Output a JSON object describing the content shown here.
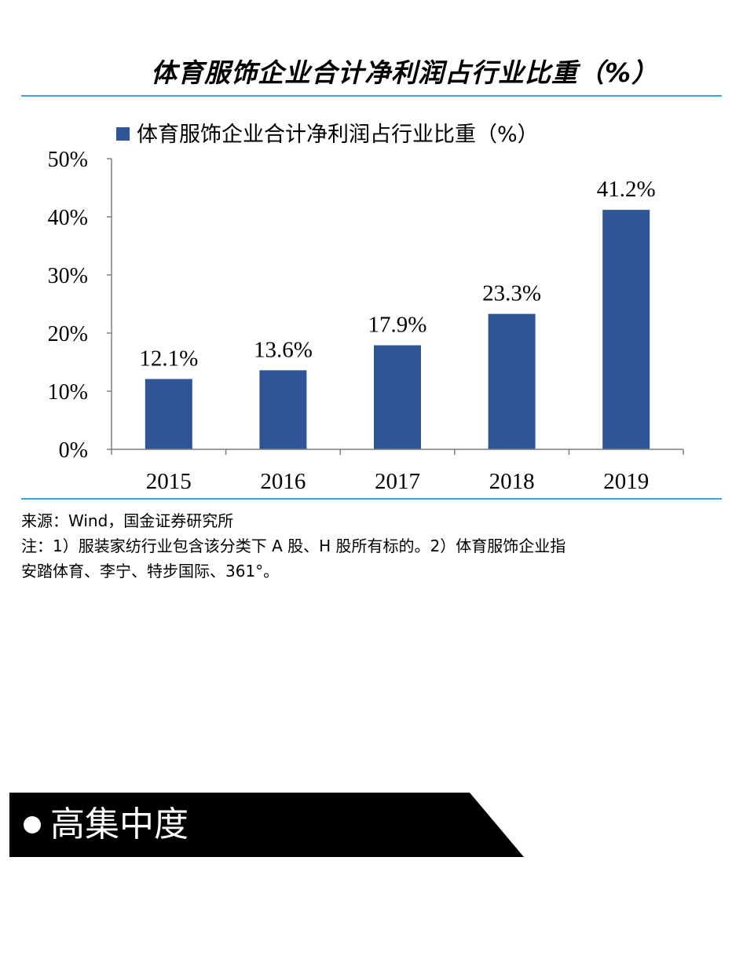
{
  "chart_data": {
    "type": "bar",
    "title": "体育服饰企业合计净利润占行业比重（%）",
    "legend": {
      "entries": [
        "体育服饰企业合计净利润占行业比重（%）"
      ],
      "placement": "top"
    },
    "categories": [
      "2015",
      "2016",
      "2017",
      "2018",
      "2019"
    ],
    "series": [
      {
        "name": "体育服饰企业合计净利润占行业比重（%）",
        "values": [
          12.1,
          13.6,
          17.9,
          23.3,
          41.2
        ],
        "labels": [
          "12.1%",
          "13.6%",
          "17.9%",
          "23.3%",
          "41.2%"
        ],
        "color": "#2f5597"
      }
    ],
    "ylim": [
      0,
      50
    ],
    "yticks": [
      0,
      10,
      20,
      30,
      40,
      50
    ],
    "ytick_labels": [
      "0%",
      "10%",
      "20%",
      "30%",
      "40%",
      "50%"
    ],
    "grid": false
  },
  "source": {
    "line1": "来源：Wind，国金证券研究所",
    "line2": "注：1）服装家纺行业包含该分类下 A 股、H 股所有标的。2）体育服饰企业指",
    "line3": "安踏体育、李宁、特步国际、361°。"
  },
  "section": {
    "title": "高集中度"
  },
  "colors": {
    "rule": "#39a7db",
    "bar": "#2f5597",
    "banner": "#000000"
  }
}
